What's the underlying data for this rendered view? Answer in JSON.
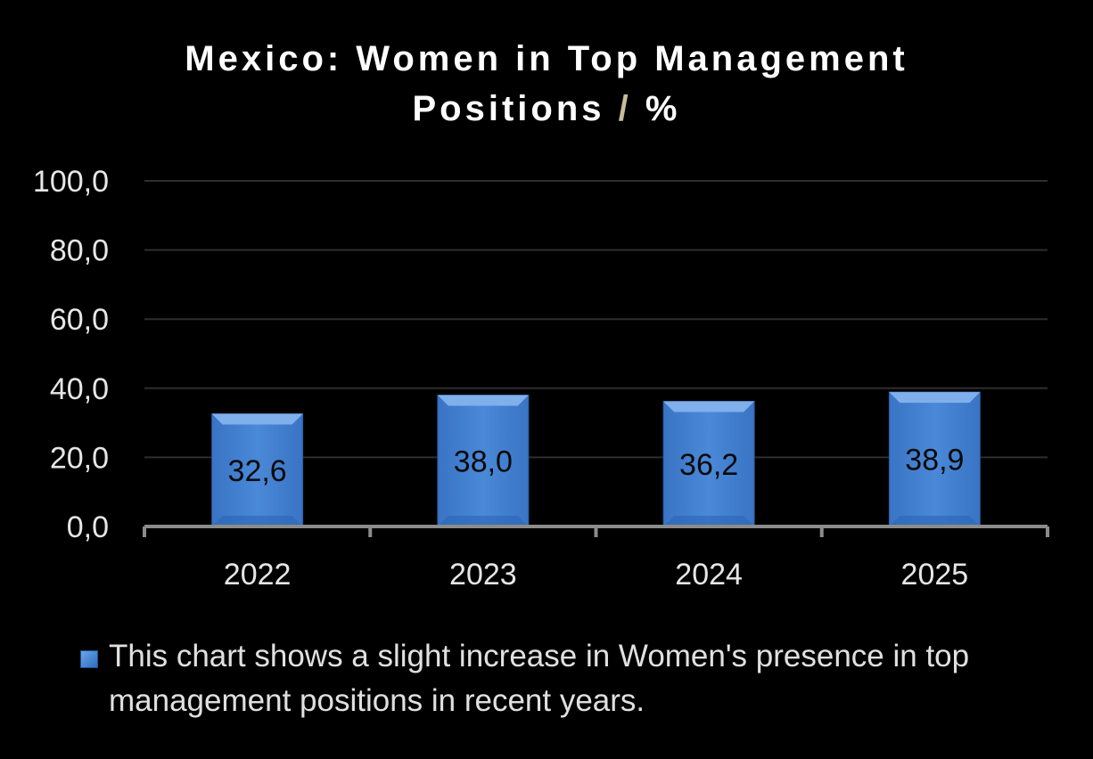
{
  "chart_data": {
    "type": "bar",
    "title_line1": "Mexico: Women in Top Management",
    "title_line2_text": "Positions",
    "title_line2_slash": "/",
    "title_line2_unit": "%",
    "categories": [
      "2022",
      "2023",
      "2024",
      "2025"
    ],
    "values": [
      32.6,
      38.0,
      36.2,
      38.9
    ],
    "data_labels": [
      "32,6",
      "38,0",
      "36,2",
      "38,9"
    ],
    "y_ticks": [
      0,
      20,
      40,
      60,
      80,
      100
    ],
    "y_tick_labels": [
      "0,0",
      "20,0",
      "40,0",
      "60,0",
      "80,0",
      "100,0"
    ],
    "ylim": [
      0,
      100
    ],
    "xlabel": "",
    "ylabel": "",
    "grid": true,
    "legend": {
      "position": "bottom",
      "entries": [
        "This chart shows a slight increase in Women's presence in top management positions in recent years."
      ]
    },
    "colors": {
      "bar": "#4a86d4",
      "bar_light": "#7fb0ec",
      "bar_dark": "#2c66b4",
      "background": "#000000",
      "gridline": "#2e2e2e",
      "axis": "#8c8c8c",
      "slash": "#c8bc9c"
    }
  }
}
